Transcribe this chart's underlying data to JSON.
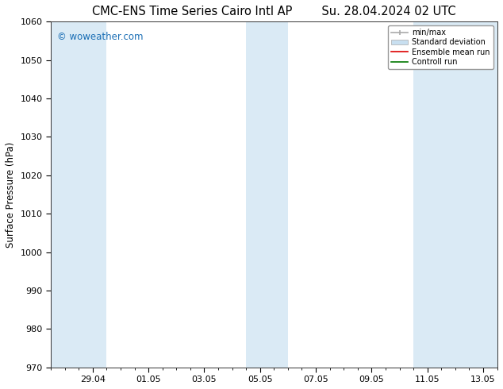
{
  "title_left": "CMC-ENS Time Series Cairo Intl AP",
  "title_right": "Su. 28.04.2024 02 UTC",
  "ylabel": "Surface Pressure (hPa)",
  "ylim": [
    970,
    1060
  ],
  "yticks": [
    970,
    980,
    990,
    1000,
    1010,
    1020,
    1030,
    1040,
    1050,
    1060
  ],
  "xlim": [
    -0.5,
    15.5
  ],
  "xtick_labels": [
    "29.04",
    "01.05",
    "03.05",
    "05.05",
    "07.05",
    "09.05",
    "11.05",
    "13.05"
  ],
  "xtick_positions": [
    1,
    3,
    5,
    7,
    9,
    11,
    13,
    15
  ],
  "shaded_bands": [
    {
      "x_start": -0.5,
      "x_end": 1.5
    },
    {
      "x_start": 6.5,
      "x_end": 8.0
    },
    {
      "x_start": 12.5,
      "x_end": 15.5
    }
  ],
  "shade_color": "#daeaf5",
  "watermark_text": "© woweather.com",
  "watermark_color": "#1a6eb5",
  "legend_labels": [
    "min/max",
    "Standard deviation",
    "Ensemble mean run",
    "Controll run"
  ],
  "background_color": "#ffffff",
  "title_fontsize": 10.5,
  "axis_fontsize": 8.5,
  "tick_fontsize": 8
}
